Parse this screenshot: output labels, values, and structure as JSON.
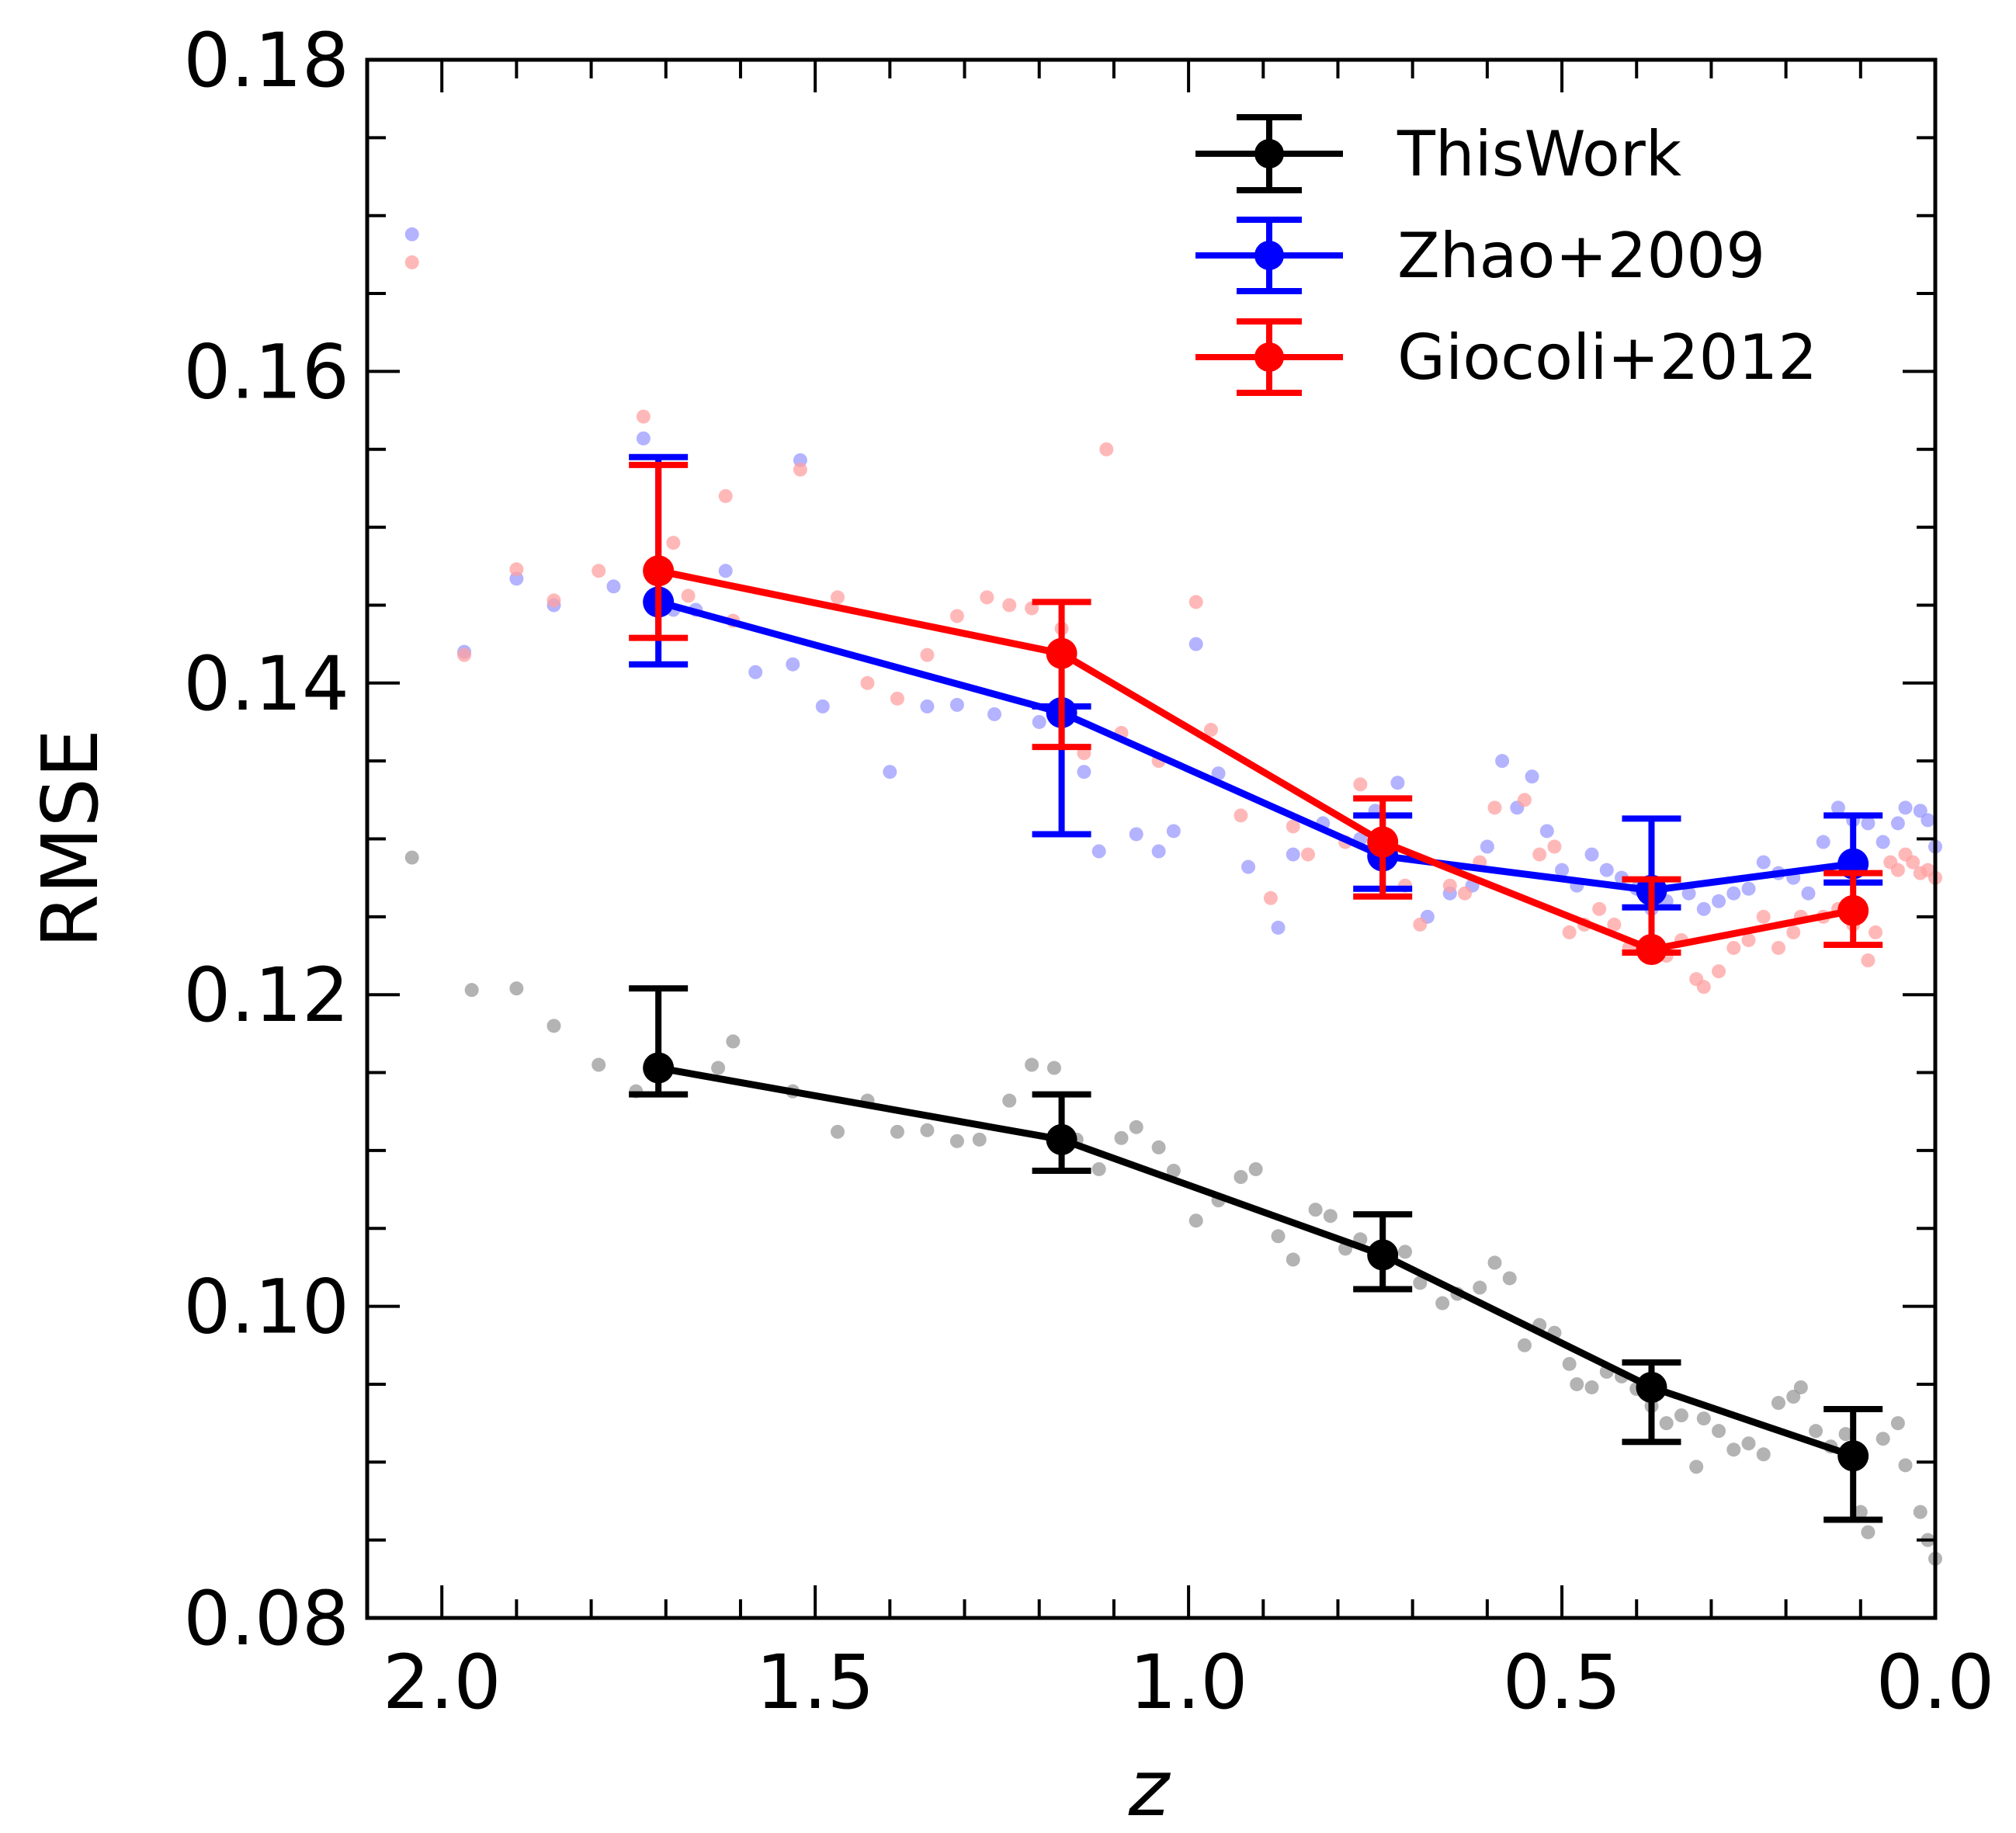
{
  "chart_data": {
    "type": "line",
    "xlabel": "z",
    "ylabel": "RMSE",
    "xlim": [
      2.1,
      0.0
    ],
    "ylim": [
      0.08,
      0.18
    ],
    "x_ticks": [
      "2.0",
      "1.5",
      "1.0",
      "0.5",
      "0.0"
    ],
    "x_tick_values": [
      2.0,
      1.5,
      1.0,
      0.5,
      0.0
    ],
    "y_ticks": [
      "0.08",
      "0.10",
      "0.12",
      "0.14",
      "0.16",
      "0.18"
    ],
    "y_tick_values": [
      0.08,
      0.1,
      0.12,
      0.14,
      0.16,
      0.18
    ],
    "legend_position": "top-right",
    "series": [
      {
        "name": "ThisWork",
        "color": "#000000",
        "x": [
          1.71,
          1.17,
          0.74,
          0.38,
          0.11
        ],
        "y": [
          0.1153,
          0.1107,
          0.1033,
          0.0948,
          0.0904
        ],
        "yerr_low": [
          0.0017,
          0.002,
          0.0022,
          0.0035,
          0.0041
        ],
        "yerr_high": [
          0.0051,
          0.0029,
          0.0026,
          0.0016,
          0.003
        ],
        "scatter_color": "#9a9a9a",
        "scatter": [
          [
            2.04,
            0.1288
          ],
          [
            1.96,
            0.1203
          ],
          [
            1.9,
            0.1204
          ],
          [
            1.85,
            0.118
          ],
          [
            1.79,
            0.1155
          ],
          [
            1.74,
            0.1138
          ],
          [
            1.61,
            0.117
          ],
          [
            1.63,
            0.1153
          ],
          [
            1.53,
            0.1138
          ],
          [
            1.47,
            0.1112
          ],
          [
            1.43,
            0.1132
          ],
          [
            1.39,
            0.1112
          ],
          [
            1.35,
            0.1113
          ],
          [
            1.31,
            0.1106
          ],
          [
            1.28,
            0.1107
          ],
          [
            1.24,
            0.1132
          ],
          [
            1.21,
            0.1155
          ],
          [
            1.18,
            0.1153
          ],
          [
            1.15,
            0.1107
          ],
          [
            1.12,
            0.1088
          ],
          [
            1.09,
            0.1108
          ],
          [
            1.07,
            0.1115
          ],
          [
            1.04,
            0.1102
          ],
          [
            1.02,
            0.1087
          ],
          [
            0.99,
            0.1055
          ],
          [
            0.96,
            0.1068
          ],
          [
            0.93,
            0.1083
          ],
          [
            0.91,
            0.1088
          ],
          [
            0.88,
            0.1045
          ],
          [
            0.86,
            0.103
          ],
          [
            0.83,
            0.1062
          ],
          [
            0.81,
            0.1058
          ],
          [
            0.79,
            0.1037
          ],
          [
            0.77,
            0.1043
          ],
          [
            0.74,
            0.1033
          ],
          [
            0.71,
            0.1035
          ],
          [
            0.69,
            0.1015
          ],
          [
            0.66,
            0.1002
          ],
          [
            0.64,
            0.1008
          ],
          [
            0.61,
            0.1012
          ],
          [
            0.59,
            0.1028
          ],
          [
            0.57,
            0.1018
          ],
          [
            0.55,
            0.0975
          ],
          [
            0.53,
            0.0988
          ],
          [
            0.51,
            0.0983
          ],
          [
            0.49,
            0.0963
          ],
          [
            0.48,
            0.095
          ],
          [
            0.46,
            0.0948
          ],
          [
            0.44,
            0.0958
          ],
          [
            0.42,
            0.0955
          ],
          [
            0.4,
            0.0947
          ],
          [
            0.38,
            0.0936
          ],
          [
            0.36,
            0.0925
          ],
          [
            0.34,
            0.093
          ],
          [
            0.32,
            0.0897
          ],
          [
            0.31,
            0.0928
          ],
          [
            0.29,
            0.092
          ],
          [
            0.27,
            0.0908
          ],
          [
            0.25,
            0.0912
          ],
          [
            0.23,
            0.0905
          ],
          [
            0.21,
            0.0938
          ],
          [
            0.19,
            0.0942
          ],
          [
            0.18,
            0.0948
          ],
          [
            0.16,
            0.092
          ],
          [
            0.14,
            0.091
          ],
          [
            0.12,
            0.0918
          ],
          [
            0.1,
            0.0868
          ],
          [
            0.09,
            0.0855
          ],
          [
            0.07,
            0.0915
          ],
          [
            0.05,
            0.0925
          ],
          [
            0.04,
            0.0898
          ],
          [
            0.02,
            0.0868
          ],
          [
            0.01,
            0.085
          ],
          [
            0.0,
            0.0838
          ]
        ]
      },
      {
        "name": "Zhao+2009",
        "color": "#0000ff",
        "x": [
          1.71,
          1.17,
          0.74,
          0.38,
          0.11
        ],
        "y": [
          0.1452,
          0.1381,
          0.1289,
          0.1267,
          0.1284
        ],
        "yerr_low": [
          0.004,
          0.0078,
          0.0021,
          0.0011,
          0.0012
        ],
        "yerr_high": [
          0.0093,
          0.0004,
          0.0026,
          0.0046,
          0.0031
        ],
        "scatter_color": "#9a9aff",
        "scatter": [
          [
            2.04,
            0.1688
          ],
          [
            1.97,
            0.142
          ],
          [
            1.9,
            0.1467
          ],
          [
            1.85,
            0.145
          ],
          [
            1.77,
            0.1462
          ],
          [
            1.73,
            0.1557
          ],
          [
            1.69,
            0.1447
          ],
          [
            1.66,
            0.1447
          ],
          [
            1.62,
            0.1472
          ],
          [
            1.58,
            0.1407
          ],
          [
            1.53,
            0.1412
          ],
          [
            1.52,
            0.1543
          ],
          [
            1.49,
            0.1385
          ],
          [
            1.4,
            0.1343
          ],
          [
            1.35,
            0.1385
          ],
          [
            1.31,
            0.1386
          ],
          [
            1.26,
            0.138
          ],
          [
            1.2,
            0.1375
          ],
          [
            1.17,
            0.1382
          ],
          [
            1.14,
            0.1343
          ],
          [
            1.12,
            0.1292
          ],
          [
            1.07,
            0.1303
          ],
          [
            1.04,
            0.1292
          ],
          [
            1.02,
            0.1305
          ],
          [
            0.99,
            0.1425
          ],
          [
            0.96,
            0.1342
          ],
          [
            0.92,
            0.1282
          ],
          [
            0.88,
            0.1243
          ],
          [
            0.86,
            0.129
          ],
          [
            0.82,
            0.131
          ],
          [
            0.77,
            0.13
          ],
          [
            0.75,
            0.1318
          ],
          [
            0.72,
            0.1336
          ],
          [
            0.68,
            0.125
          ],
          [
            0.65,
            0.1265
          ],
          [
            0.62,
            0.127
          ],
          [
            0.6,
            0.1295
          ],
          [
            0.58,
            0.135
          ],
          [
            0.56,
            0.132
          ],
          [
            0.54,
            0.134
          ],
          [
            0.52,
            0.1305
          ],
          [
            0.5,
            0.128
          ],
          [
            0.48,
            0.127
          ],
          [
            0.46,
            0.129
          ],
          [
            0.44,
            0.128
          ],
          [
            0.42,
            0.1275
          ],
          [
            0.4,
            0.1268
          ],
          [
            0.38,
            0.1255
          ],
          [
            0.36,
            0.126
          ],
          [
            0.33,
            0.1265
          ],
          [
            0.31,
            0.1255
          ],
          [
            0.29,
            0.126
          ],
          [
            0.27,
            0.1265
          ],
          [
            0.25,
            0.1268
          ],
          [
            0.23,
            0.1285
          ],
          [
            0.21,
            0.1278
          ],
          [
            0.19,
            0.1275
          ],
          [
            0.17,
            0.1265
          ],
          [
            0.15,
            0.1298
          ],
          [
            0.13,
            0.132
          ],
          [
            0.11,
            0.1312
          ],
          [
            0.09,
            0.131
          ],
          [
            0.07,
            0.1298
          ],
          [
            0.05,
            0.131
          ],
          [
            0.04,
            0.132
          ],
          [
            0.02,
            0.1318
          ],
          [
            0.01,
            0.1312
          ],
          [
            0.0,
            0.1295
          ]
        ]
      },
      {
        "name": "Giocoli+2012",
        "color": "#ff0000",
        "x": [
          1.71,
          1.17,
          0.74,
          0.38,
          0.11
        ],
        "y": [
          0.1472,
          0.1419,
          0.1298,
          0.1229,
          0.1254
        ],
        "yerr_low": [
          0.0043,
          0.006,
          0.0035,
          0.0002,
          0.0022
        ],
        "yerr_high": [
          0.0068,
          0.0033,
          0.0028,
          0.0045,
          0.0024
        ],
        "scatter_color": "#ffa0a0",
        "scatter": [
          [
            2.04,
            0.167
          ],
          [
            1.97,
            0.1418
          ],
          [
            1.9,
            0.1473
          ],
          [
            1.85,
            0.1453
          ],
          [
            1.79,
            0.1472
          ],
          [
            1.73,
            0.1571
          ],
          [
            1.69,
            0.149
          ],
          [
            1.67,
            0.1456
          ],
          [
            1.62,
            0.152
          ],
          [
            1.61,
            0.144
          ],
          [
            1.52,
            0.1537
          ],
          [
            1.47,
            0.1455
          ],
          [
            1.43,
            0.14
          ],
          [
            1.39,
            0.139
          ],
          [
            1.35,
            0.1418
          ],
          [
            1.31,
            0.1443
          ],
          [
            1.27,
            0.1455
          ],
          [
            1.24,
            0.145
          ],
          [
            1.21,
            0.1448
          ],
          [
            1.17,
            0.1435
          ],
          [
            1.14,
            0.1355
          ],
          [
            1.11,
            0.155
          ],
          [
            1.09,
            0.1368
          ],
          [
            1.04,
            0.135
          ],
          [
            0.99,
            0.1452
          ],
          [
            0.97,
            0.137
          ],
          [
            0.93,
            0.1315
          ],
          [
            0.89,
            0.1262
          ],
          [
            0.86,
            0.1308
          ],
          [
            0.84,
            0.129
          ],
          [
            0.79,
            0.1298
          ],
          [
            0.77,
            0.1335
          ],
          [
            0.74,
            0.13
          ],
          [
            0.71,
            0.127
          ],
          [
            0.69,
            0.1245
          ],
          [
            0.65,
            0.127
          ],
          [
            0.63,
            0.1265
          ],
          [
            0.61,
            0.1285
          ],
          [
            0.59,
            0.132
          ],
          [
            0.55,
            0.1325
          ],
          [
            0.53,
            0.129
          ],
          [
            0.51,
            0.1295
          ],
          [
            0.49,
            0.124
          ],
          [
            0.47,
            0.1245
          ],
          [
            0.45,
            0.1255
          ],
          [
            0.43,
            0.1245
          ],
          [
            0.41,
            0.123
          ],
          [
            0.38,
            0.123
          ],
          [
            0.36,
            0.1225
          ],
          [
            0.34,
            0.1235
          ],
          [
            0.32,
            0.121
          ],
          [
            0.31,
            0.1205
          ],
          [
            0.29,
            0.1215
          ],
          [
            0.27,
            0.123
          ],
          [
            0.25,
            0.1235
          ],
          [
            0.23,
            0.125
          ],
          [
            0.21,
            0.123
          ],
          [
            0.19,
            0.124
          ],
          [
            0.18,
            0.125
          ],
          [
            0.15,
            0.125
          ],
          [
            0.13,
            0.1255
          ],
          [
            0.11,
            0.1245
          ],
          [
            0.09,
            0.1222
          ],
          [
            0.08,
            0.124
          ],
          [
            0.06,
            0.1285
          ],
          [
            0.05,
            0.128
          ],
          [
            0.04,
            0.129
          ],
          [
            0.03,
            0.1285
          ],
          [
            0.02,
            0.1278
          ],
          [
            0.01,
            0.128
          ],
          [
            0.0,
            0.1275
          ]
        ]
      }
    ]
  }
}
